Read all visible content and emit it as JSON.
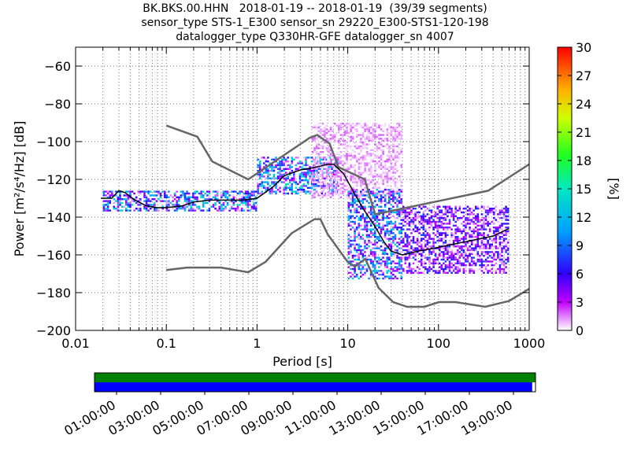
{
  "title_lines": [
    "BK.BKS.00.HHN   2018-01-19 -- 2018-01-19  (39/39 segments)",
    "sensor_type STS-1_E300 sensor_sn 29220_E300-STS1-120-198",
    "datalogger_type Q330HR-GFE datalogger_sn 4007"
  ],
  "chart_data": [
    {
      "type": "heatmap",
      "subtype": "probabilistic power spectral density",
      "xlabel": "Period [s]",
      "ylabel": "Power [m²/s⁴/Hz] [dB]",
      "xscale": "log",
      "xlim": [
        0.01,
        1000
      ],
      "ylim": [
        -200,
        -50
      ],
      "xticks": [
        0.01,
        0.1,
        1,
        10,
        100,
        1000
      ],
      "xtick_labels": [
        "0.01",
        "0.1",
        "1",
        "10",
        "100",
        "1000"
      ],
      "yticks": [
        -200,
        -180,
        -160,
        -140,
        -120,
        -100,
        -80,
        -60
      ],
      "ytick_labels": [
        "−200",
        "−180",
        "−160",
        "−140",
        "−120",
        "−100",
        "−80",
        "−60"
      ],
      "grid": true,
      "colorbar": {
        "label": "[%]",
        "range": [
          0,
          30
        ],
        "ticks": [
          0,
          3,
          6,
          9,
          12,
          15,
          18,
          21,
          24,
          27,
          30
        ],
        "tick_labels": [
          "0",
          "3",
          "6",
          "9",
          "12",
          "15",
          "18",
          "21",
          "24",
          "27",
          "30"
        ]
      },
      "mode_curve": [
        [
          0.019,
          -130
        ],
        [
          0.025,
          -130
        ],
        [
          0.03,
          -126
        ],
        [
          0.035,
          -127
        ],
        [
          0.045,
          -131
        ],
        [
          0.06,
          -134
        ],
        [
          0.08,
          -135
        ],
        [
          0.1,
          -135
        ],
        [
          0.15,
          -134
        ],
        [
          0.2,
          -132
        ],
        [
          0.3,
          -131
        ],
        [
          0.5,
          -131
        ],
        [
          0.7,
          -131
        ],
        [
          1,
          -130
        ],
        [
          1.5,
          -124
        ],
        [
          2,
          -118
        ],
        [
          3,
          -115
        ],
        [
          4,
          -114
        ],
        [
          5,
          -113
        ],
        [
          6,
          -112
        ],
        [
          7,
          -112
        ],
        [
          9,
          -117
        ],
        [
          12,
          -128
        ],
        [
          15,
          -136
        ],
        [
          20,
          -145
        ],
        [
          25,
          -153
        ],
        [
          30,
          -158
        ],
        [
          40,
          -160
        ],
        [
          60,
          -158
        ],
        [
          100,
          -156
        ],
        [
          200,
          -153
        ],
        [
          400,
          -150
        ],
        [
          600,
          -146
        ]
      ],
      "distribution_bands": [
        {
          "x": [
            0.02,
            1
          ],
          "y_range": [
            -137,
            -126
          ],
          "max_percent": 15
        },
        {
          "x": [
            1,
            8
          ],
          "y_range": [
            -128,
            -108
          ],
          "max_percent": 15
        },
        {
          "x": [
            4,
            40
          ],
          "y_range": [
            -130,
            -90
          ],
          "max_percent": 2
        },
        {
          "x": [
            10,
            40
          ],
          "y_range": [
            -173,
            -125
          ],
          "max_percent": 14
        },
        {
          "x": [
            40,
            600
          ],
          "y_range": [
            -170,
            -134
          ],
          "max_percent": 8
        }
      ],
      "noise_model_high": [
        [
          0.1,
          -91.5
        ],
        [
          0.22,
          -97.4
        ],
        [
          0.32,
          -110.5
        ],
        [
          0.8,
          -120
        ],
        [
          3.8,
          -98
        ],
        [
          4.6,
          -96.5
        ],
        [
          6.3,
          -101
        ],
        [
          7.9,
          -113.5
        ],
        [
          15.4,
          -120
        ],
        [
          20,
          -138.5
        ],
        [
          354,
          -126
        ],
        [
          1000,
          -112
        ]
      ],
      "noise_model_low": [
        [
          0.1,
          -168
        ],
        [
          0.17,
          -166.7
        ],
        [
          0.4,
          -166.7
        ],
        [
          0.8,
          -169.2
        ],
        [
          1.24,
          -163.7
        ],
        [
          2.4,
          -148.6
        ],
        [
          4.3,
          -141.1
        ],
        [
          5,
          -141.1
        ],
        [
          6,
          -149
        ],
        [
          10,
          -163.8
        ],
        [
          12,
          -166.2
        ],
        [
          15.6,
          -162.1
        ],
        [
          21.9,
          -177.5
        ],
        [
          31.6,
          -185
        ],
        [
          45,
          -187.5
        ],
        [
          70,
          -187.5
        ],
        [
          101,
          -185
        ],
        [
          154,
          -185
        ],
        [
          328,
          -187.5
        ],
        [
          600,
          -184.4
        ],
        [
          1000,
          -178
        ]
      ]
    },
    {
      "type": "bar",
      "subtype": "data availability timeline",
      "xtick_labels": [
        "01:00:00",
        "03:00:00",
        "05:00:00",
        "07:00:00",
        "09:00:00",
        "11:00:00",
        "13:00:00",
        "15:00:00",
        "17:00:00",
        "19:00:00"
      ],
      "xticks_hours": [
        1,
        3,
        5,
        7,
        9,
        11,
        13,
        15,
        17,
        19
      ],
      "xlim_hours": [
        0,
        20
      ],
      "rows": [
        {
          "color": "#008000",
          "segments": [
            [
              0,
              20
            ]
          ]
        },
        {
          "color": "#0000ff",
          "segments": [
            [
              0,
              19.85
            ]
          ]
        }
      ]
    }
  ]
}
